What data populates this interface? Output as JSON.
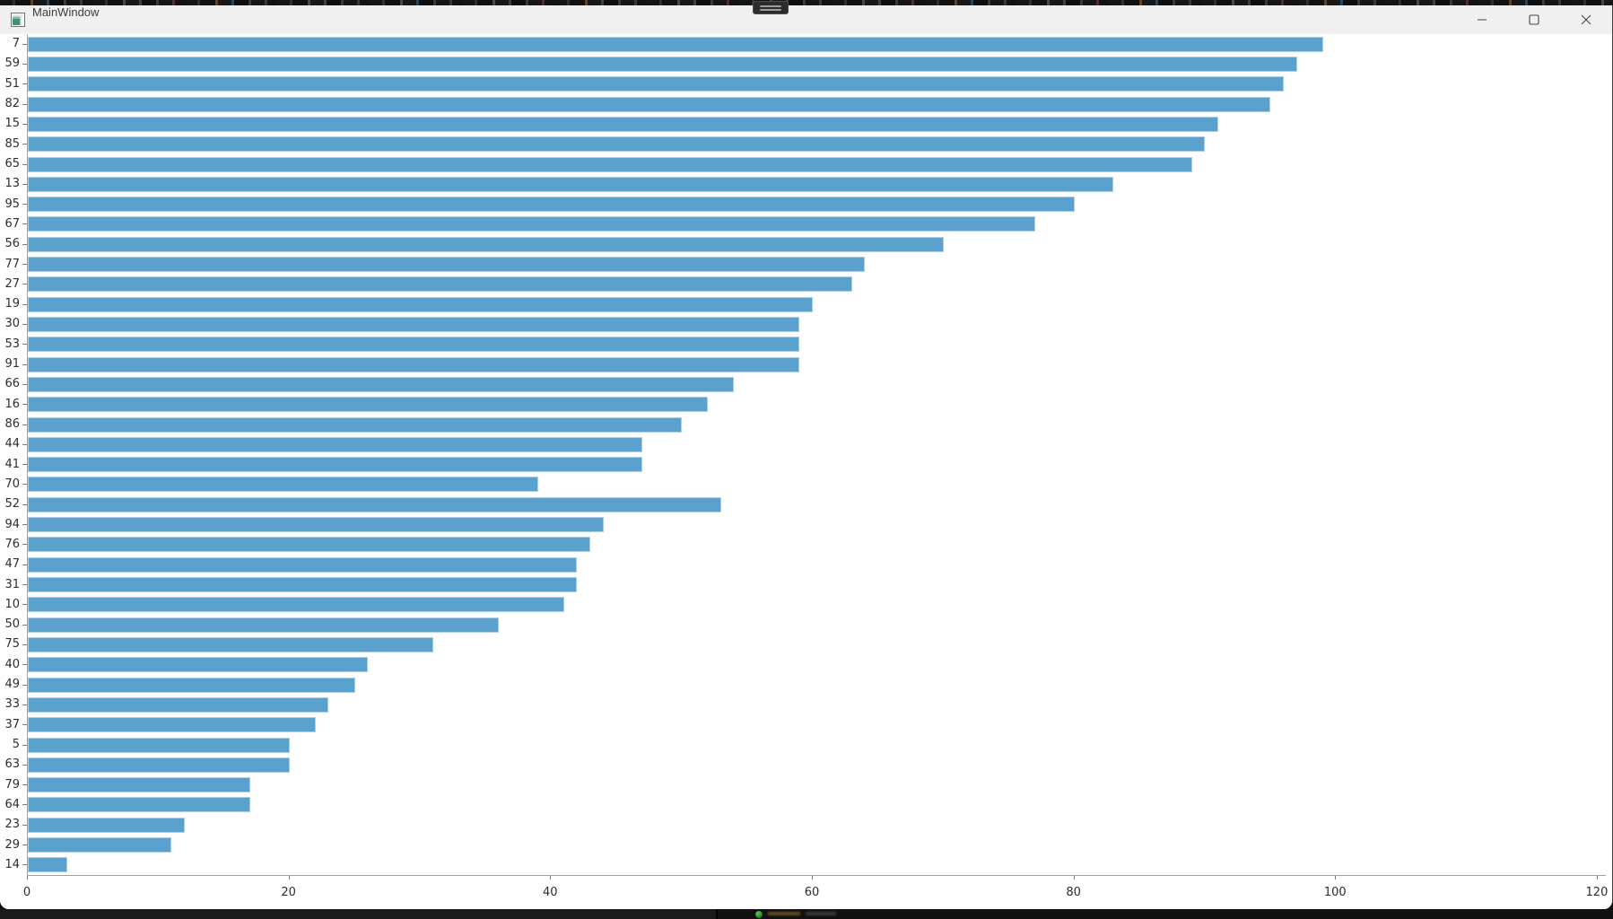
{
  "window": {
    "title": "MainWindow",
    "app_icon": "qt-app-icon",
    "controls": [
      {
        "icon": "minimize-icon"
      },
      {
        "icon": "maximize-icon"
      },
      {
        "icon": "close-icon"
      }
    ]
  },
  "background": {
    "top_strip": "occluded-app-edge",
    "bottom_strip": "occluded-taskbar-edge",
    "tray_icon": "green-status-icon",
    "grab_pill_icon": "drag-handle-icon"
  },
  "chart_data": {
    "type": "bar",
    "orientation": "horizontal",
    "title": "",
    "xlabel": "",
    "ylabel": "",
    "categories": [
      "7",
      "59",
      "51",
      "82",
      "15",
      "85",
      "65",
      "13",
      "95",
      "67",
      "56",
      "77",
      "27",
      "19",
      "30",
      "53",
      "91",
      "66",
      "16",
      "86",
      "44",
      "41",
      "70",
      "52",
      "94",
      "76",
      "47",
      "31",
      "10",
      "50",
      "75",
      "40",
      "49",
      "33",
      "37",
      "5",
      "63",
      "79",
      "64",
      "23",
      "29",
      "14"
    ],
    "values": [
      99,
      97,
      96,
      95,
      91,
      90,
      89,
      83,
      80,
      77,
      70,
      64,
      63,
      60,
      59,
      59,
      59,
      54,
      52,
      50,
      47,
      47,
      39,
      53,
      44,
      43,
      42,
      42,
      41,
      36,
      31,
      26,
      25,
      23,
      22,
      20,
      20,
      17,
      17,
      12,
      11,
      3
    ],
    "xticks": [
      0,
      20,
      40,
      60,
      80,
      100,
      120
    ],
    "xlim": [
      0,
      120
    ],
    "grid": false,
    "legend": null,
    "bar_color": "#5aa1ce",
    "axis_color": "#a0a0a0",
    "tick_color": "#7a7a7a",
    "tick_label_color": "#2d2d2d"
  }
}
